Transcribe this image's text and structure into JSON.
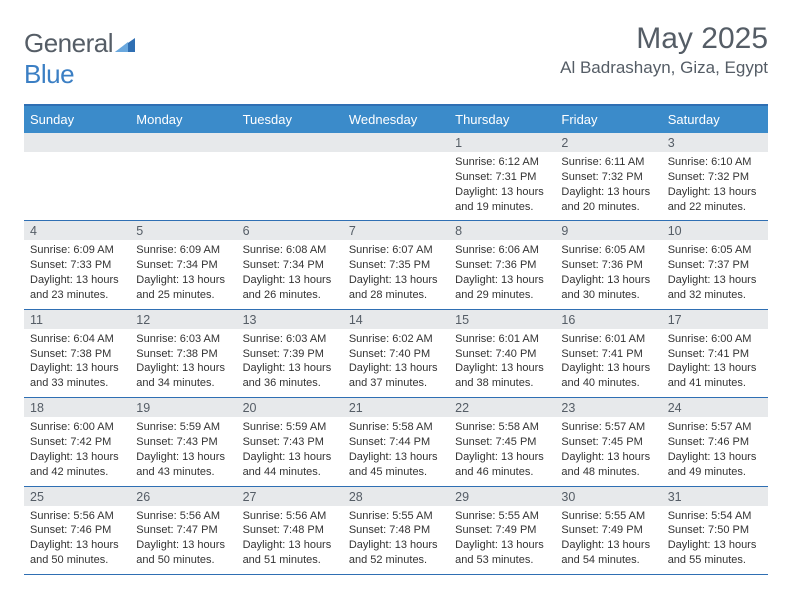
{
  "brand": {
    "word1": "General",
    "word2": "Blue"
  },
  "title": "May 2025",
  "location": "Al Badrashayn, Giza, Egypt",
  "colors": {
    "header_bg": "#3b8bca",
    "header_text": "#ffffff",
    "border": "#2f6fb3",
    "daynum_bg": "#e7e9eb",
    "text": "#333333",
    "muted": "#555d66"
  },
  "day_names": [
    "Sunday",
    "Monday",
    "Tuesday",
    "Wednesday",
    "Thursday",
    "Friday",
    "Saturday"
  ],
  "weeks": [
    [
      {
        "n": "",
        "sunrise": "",
        "sunset": "",
        "daylight1": "",
        "daylight2": ""
      },
      {
        "n": "",
        "sunrise": "",
        "sunset": "",
        "daylight1": "",
        "daylight2": ""
      },
      {
        "n": "",
        "sunrise": "",
        "sunset": "",
        "daylight1": "",
        "daylight2": ""
      },
      {
        "n": "",
        "sunrise": "",
        "sunset": "",
        "daylight1": "",
        "daylight2": ""
      },
      {
        "n": "1",
        "sunrise": "Sunrise: 6:12 AM",
        "sunset": "Sunset: 7:31 PM",
        "daylight1": "Daylight: 13 hours",
        "daylight2": "and 19 minutes."
      },
      {
        "n": "2",
        "sunrise": "Sunrise: 6:11 AM",
        "sunset": "Sunset: 7:32 PM",
        "daylight1": "Daylight: 13 hours",
        "daylight2": "and 20 minutes."
      },
      {
        "n": "3",
        "sunrise": "Sunrise: 6:10 AM",
        "sunset": "Sunset: 7:32 PM",
        "daylight1": "Daylight: 13 hours",
        "daylight2": "and 22 minutes."
      }
    ],
    [
      {
        "n": "4",
        "sunrise": "Sunrise: 6:09 AM",
        "sunset": "Sunset: 7:33 PM",
        "daylight1": "Daylight: 13 hours",
        "daylight2": "and 23 minutes."
      },
      {
        "n": "5",
        "sunrise": "Sunrise: 6:09 AM",
        "sunset": "Sunset: 7:34 PM",
        "daylight1": "Daylight: 13 hours",
        "daylight2": "and 25 minutes."
      },
      {
        "n": "6",
        "sunrise": "Sunrise: 6:08 AM",
        "sunset": "Sunset: 7:34 PM",
        "daylight1": "Daylight: 13 hours",
        "daylight2": "and 26 minutes."
      },
      {
        "n": "7",
        "sunrise": "Sunrise: 6:07 AM",
        "sunset": "Sunset: 7:35 PM",
        "daylight1": "Daylight: 13 hours",
        "daylight2": "and 28 minutes."
      },
      {
        "n": "8",
        "sunrise": "Sunrise: 6:06 AM",
        "sunset": "Sunset: 7:36 PM",
        "daylight1": "Daylight: 13 hours",
        "daylight2": "and 29 minutes."
      },
      {
        "n": "9",
        "sunrise": "Sunrise: 6:05 AM",
        "sunset": "Sunset: 7:36 PM",
        "daylight1": "Daylight: 13 hours",
        "daylight2": "and 30 minutes."
      },
      {
        "n": "10",
        "sunrise": "Sunrise: 6:05 AM",
        "sunset": "Sunset: 7:37 PM",
        "daylight1": "Daylight: 13 hours",
        "daylight2": "and 32 minutes."
      }
    ],
    [
      {
        "n": "11",
        "sunrise": "Sunrise: 6:04 AM",
        "sunset": "Sunset: 7:38 PM",
        "daylight1": "Daylight: 13 hours",
        "daylight2": "and 33 minutes."
      },
      {
        "n": "12",
        "sunrise": "Sunrise: 6:03 AM",
        "sunset": "Sunset: 7:38 PM",
        "daylight1": "Daylight: 13 hours",
        "daylight2": "and 34 minutes."
      },
      {
        "n": "13",
        "sunrise": "Sunrise: 6:03 AM",
        "sunset": "Sunset: 7:39 PM",
        "daylight1": "Daylight: 13 hours",
        "daylight2": "and 36 minutes."
      },
      {
        "n": "14",
        "sunrise": "Sunrise: 6:02 AM",
        "sunset": "Sunset: 7:40 PM",
        "daylight1": "Daylight: 13 hours",
        "daylight2": "and 37 minutes."
      },
      {
        "n": "15",
        "sunrise": "Sunrise: 6:01 AM",
        "sunset": "Sunset: 7:40 PM",
        "daylight1": "Daylight: 13 hours",
        "daylight2": "and 38 minutes."
      },
      {
        "n": "16",
        "sunrise": "Sunrise: 6:01 AM",
        "sunset": "Sunset: 7:41 PM",
        "daylight1": "Daylight: 13 hours",
        "daylight2": "and 40 minutes."
      },
      {
        "n": "17",
        "sunrise": "Sunrise: 6:00 AM",
        "sunset": "Sunset: 7:41 PM",
        "daylight1": "Daylight: 13 hours",
        "daylight2": "and 41 minutes."
      }
    ],
    [
      {
        "n": "18",
        "sunrise": "Sunrise: 6:00 AM",
        "sunset": "Sunset: 7:42 PM",
        "daylight1": "Daylight: 13 hours",
        "daylight2": "and 42 minutes."
      },
      {
        "n": "19",
        "sunrise": "Sunrise: 5:59 AM",
        "sunset": "Sunset: 7:43 PM",
        "daylight1": "Daylight: 13 hours",
        "daylight2": "and 43 minutes."
      },
      {
        "n": "20",
        "sunrise": "Sunrise: 5:59 AM",
        "sunset": "Sunset: 7:43 PM",
        "daylight1": "Daylight: 13 hours",
        "daylight2": "and 44 minutes."
      },
      {
        "n": "21",
        "sunrise": "Sunrise: 5:58 AM",
        "sunset": "Sunset: 7:44 PM",
        "daylight1": "Daylight: 13 hours",
        "daylight2": "and 45 minutes."
      },
      {
        "n": "22",
        "sunrise": "Sunrise: 5:58 AM",
        "sunset": "Sunset: 7:45 PM",
        "daylight1": "Daylight: 13 hours",
        "daylight2": "and 46 minutes."
      },
      {
        "n": "23",
        "sunrise": "Sunrise: 5:57 AM",
        "sunset": "Sunset: 7:45 PM",
        "daylight1": "Daylight: 13 hours",
        "daylight2": "and 48 minutes."
      },
      {
        "n": "24",
        "sunrise": "Sunrise: 5:57 AM",
        "sunset": "Sunset: 7:46 PM",
        "daylight1": "Daylight: 13 hours",
        "daylight2": "and 49 minutes."
      }
    ],
    [
      {
        "n": "25",
        "sunrise": "Sunrise: 5:56 AM",
        "sunset": "Sunset: 7:46 PM",
        "daylight1": "Daylight: 13 hours",
        "daylight2": "and 50 minutes."
      },
      {
        "n": "26",
        "sunrise": "Sunrise: 5:56 AM",
        "sunset": "Sunset: 7:47 PM",
        "daylight1": "Daylight: 13 hours",
        "daylight2": "and 50 minutes."
      },
      {
        "n": "27",
        "sunrise": "Sunrise: 5:56 AM",
        "sunset": "Sunset: 7:48 PM",
        "daylight1": "Daylight: 13 hours",
        "daylight2": "and 51 minutes."
      },
      {
        "n": "28",
        "sunrise": "Sunrise: 5:55 AM",
        "sunset": "Sunset: 7:48 PM",
        "daylight1": "Daylight: 13 hours",
        "daylight2": "and 52 minutes."
      },
      {
        "n": "29",
        "sunrise": "Sunrise: 5:55 AM",
        "sunset": "Sunset: 7:49 PM",
        "daylight1": "Daylight: 13 hours",
        "daylight2": "and 53 minutes."
      },
      {
        "n": "30",
        "sunrise": "Sunrise: 5:55 AM",
        "sunset": "Sunset: 7:49 PM",
        "daylight1": "Daylight: 13 hours",
        "daylight2": "and 54 minutes."
      },
      {
        "n": "31",
        "sunrise": "Sunrise: 5:54 AM",
        "sunset": "Sunset: 7:50 PM",
        "daylight1": "Daylight: 13 hours",
        "daylight2": "and 55 minutes."
      }
    ]
  ]
}
